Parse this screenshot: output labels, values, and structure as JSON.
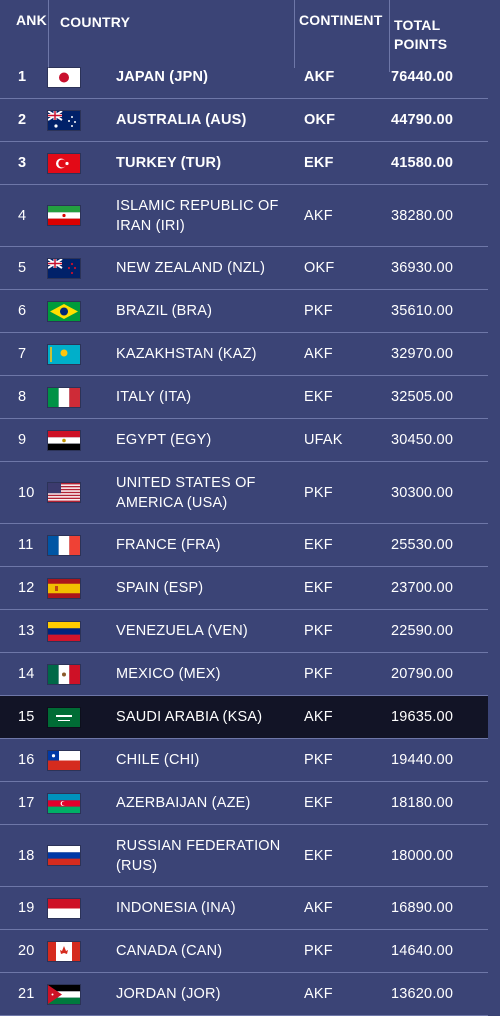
{
  "header": {
    "rank": "ANK",
    "country": "COUNTRY",
    "continent": "CONTINENT",
    "points": "TOTAL POINTS"
  },
  "rows": [
    {
      "rank": "1",
      "flag": "japan-flag",
      "country": "JAPAN (JPN)",
      "continent": "AKF",
      "points": "76440.00",
      "bold": true,
      "highlight": false
    },
    {
      "rank": "2",
      "flag": "australia-flag",
      "country": "AUSTRALIA (AUS)",
      "continent": "OKF",
      "points": "44790.00",
      "bold": true,
      "highlight": false
    },
    {
      "rank": "3",
      "flag": "turkey-flag",
      "country": "TURKEY (TUR)",
      "continent": "EKF",
      "points": "41580.00",
      "bold": true,
      "highlight": false
    },
    {
      "rank": "4",
      "flag": "iran-flag",
      "country": "ISLAMIC REPUBLIC OF IRAN (IRI)",
      "continent": "AKF",
      "points": "38280.00",
      "bold": false,
      "highlight": false
    },
    {
      "rank": "5",
      "flag": "new-zealand-flag",
      "country": "NEW ZEALAND (NZL)",
      "continent": "OKF",
      "points": "36930.00",
      "bold": false,
      "highlight": false
    },
    {
      "rank": "6",
      "flag": "brazil-flag",
      "country": "BRAZIL (BRA)",
      "continent": "PKF",
      "points": "35610.00",
      "bold": false,
      "highlight": false
    },
    {
      "rank": "7",
      "flag": "kazakhstan-flag",
      "country": "KAZAKHSTAN (KAZ)",
      "continent": "AKF",
      "points": "32970.00",
      "bold": false,
      "highlight": false
    },
    {
      "rank": "8",
      "flag": "italy-flag",
      "country": "ITALY (ITA)",
      "continent": "EKF",
      "points": "32505.00",
      "bold": false,
      "highlight": false
    },
    {
      "rank": "9",
      "flag": "egypt-flag",
      "country": "EGYPT (EGY)",
      "continent": "UFAK",
      "points": "30450.00",
      "bold": false,
      "highlight": false
    },
    {
      "rank": "10",
      "flag": "usa-flag",
      "country": "UNITED STATES OF AMERICA (USA)",
      "continent": "PKF",
      "points": "30300.00",
      "bold": false,
      "highlight": false
    },
    {
      "rank": "11",
      "flag": "france-flag",
      "country": "FRANCE (FRA)",
      "continent": "EKF",
      "points": "25530.00",
      "bold": false,
      "highlight": false
    },
    {
      "rank": "12",
      "flag": "spain-flag",
      "country": "SPAIN (ESP)",
      "continent": "EKF",
      "points": "23700.00",
      "bold": false,
      "highlight": false
    },
    {
      "rank": "13",
      "flag": "venezuela-flag",
      "country": "VENEZUELA (VEN)",
      "continent": "PKF",
      "points": "22590.00",
      "bold": false,
      "highlight": false
    },
    {
      "rank": "14",
      "flag": "mexico-flag",
      "country": "MEXICO (MEX)",
      "continent": "PKF",
      "points": "20790.00",
      "bold": false,
      "highlight": false
    },
    {
      "rank": "15",
      "flag": "saudi-arabia-flag",
      "country": "SAUDI ARABIA (KSA)",
      "continent": "AKF",
      "points": "19635.00",
      "bold": false,
      "highlight": true
    },
    {
      "rank": "16",
      "flag": "chile-flag",
      "country": "CHILE (CHI)",
      "continent": "PKF",
      "points": "19440.00",
      "bold": false,
      "highlight": false
    },
    {
      "rank": "17",
      "flag": "azerbaijan-flag",
      "country": "AZERBAIJAN (AZE)",
      "continent": "EKF",
      "points": "18180.00",
      "bold": false,
      "highlight": false
    },
    {
      "rank": "18",
      "flag": "russia-flag",
      "country": "RUSSIAN FEDERATION (RUS)",
      "continent": "EKF",
      "points": "18000.00",
      "bold": false,
      "highlight": false
    },
    {
      "rank": "19",
      "flag": "indonesia-flag",
      "country": "INDONESIA (INA)",
      "continent": "AKF",
      "points": "16890.00",
      "bold": false,
      "highlight": false
    },
    {
      "rank": "20",
      "flag": "canada-flag",
      "country": "CANADA (CAN)",
      "continent": "PKF",
      "points": "14640.00",
      "bold": false,
      "highlight": false
    },
    {
      "rank": "21",
      "flag": "jordan-flag",
      "country": "JORDAN (JOR)",
      "continent": "AKF",
      "points": "13620.00",
      "bold": false,
      "highlight": false
    }
  ]
}
